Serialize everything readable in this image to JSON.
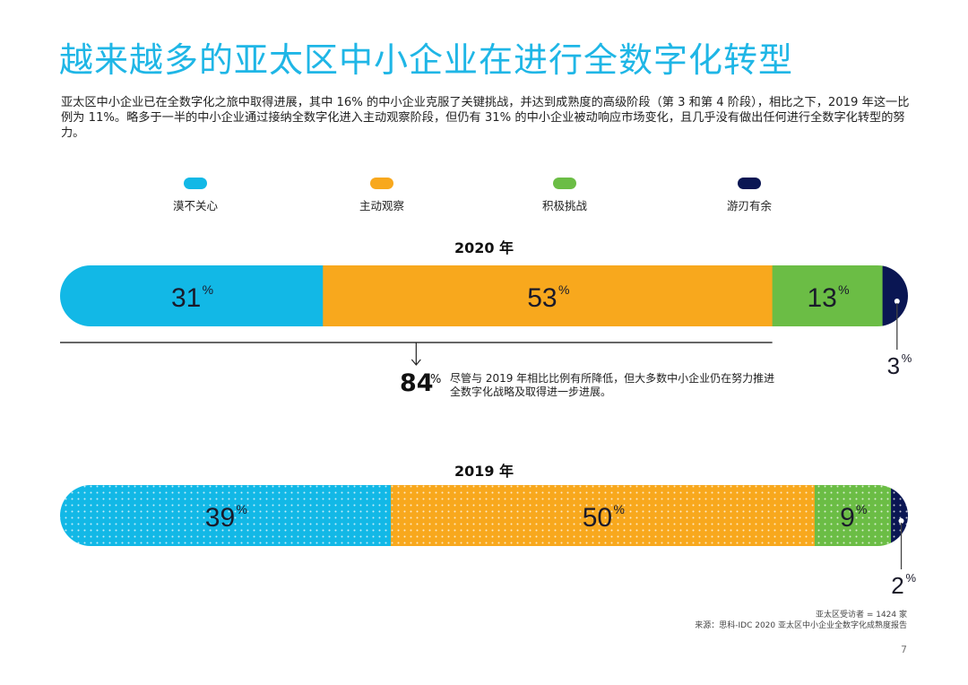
{
  "page": {
    "title": "越来越多的亚太区中小企业在进行全数字化转型",
    "intro": "亚太区中小企业已在全数字化之旅中取得进展，其中 16% 的中小企业克服了关键挑战，并达到成熟度的高级阶段（第 3 和第 4 阶段），相比之下，2019 年这一比例为 11%。略多于一半的中小企业通过接纳全数字化进入主动观察阶段，但仍有 31% 的中小企业被动响应市场变化，且几乎没有做出任何进行全数字化转型的努力。",
    "note": {
      "value": "84",
      "unit": "%",
      "text": "尽管与 2019 年相比比例有所降低，但大多数中小企业仍在努力推进全数字化战略及取得进一步进展。"
    },
    "footer": {
      "respondents": "亚太区受访者 = 1424 家",
      "source": "来源：思科-IDC 2020 亚太区中小企业全数字化成熟度报告"
    },
    "page_number": "7"
  },
  "chart_data": {
    "type": "bar",
    "orientation": "horizontal-stacked-100",
    "title": "越来越多的亚太区中小企业在进行全数字化转型",
    "legend_position": "top",
    "legend": [
      {
        "name": "漠不关心",
        "color": "#12b8e6"
      },
      {
        "name": "主动观察",
        "color": "#f8a81d"
      },
      {
        "name": "积极挑战",
        "color": "#6bbd45"
      },
      {
        "name": "游刃有余",
        "color": "#0a1653"
      }
    ],
    "categories": [
      "2020 年",
      "2019 年"
    ],
    "series": [
      {
        "name": "漠不关心",
        "values": [
          31,
          39
        ]
      },
      {
        "name": "主动观察",
        "values": [
          53,
          50
        ]
      },
      {
        "name": "积极挑战",
        "values": [
          13,
          9
        ]
      },
      {
        "name": "游刃有余",
        "values": [
          3,
          2
        ]
      }
    ],
    "bars": [
      {
        "label": "2020 年",
        "patterned": false,
        "segments": [
          {
            "series": "漠不关心",
            "value": 31,
            "label": "31"
          },
          {
            "series": "主动观察",
            "value": 53,
            "label": "53"
          },
          {
            "series": "积极挑战",
            "value": 13,
            "label": "13"
          },
          {
            "series": "游刃有余",
            "value": 3,
            "label": "3"
          }
        ]
      },
      {
        "label": "2019 年",
        "patterned": true,
        "segments": [
          {
            "series": "漠不关心",
            "value": 39,
            "label": "39"
          },
          {
            "series": "主动观察",
            "value": 50,
            "label": "50"
          },
          {
            "series": "积极挑战",
            "value": 9,
            "label": "9"
          },
          {
            "series": "游刃有余",
            "value": 2,
            "label": "2"
          }
        ]
      }
    ],
    "percent_sign": "%",
    "bracket": {
      "covers": [
        "漠不关心",
        "主动观察"
      ],
      "bar": "2020 年",
      "total": 84
    },
    "xlim": [
      0,
      100
    ]
  }
}
